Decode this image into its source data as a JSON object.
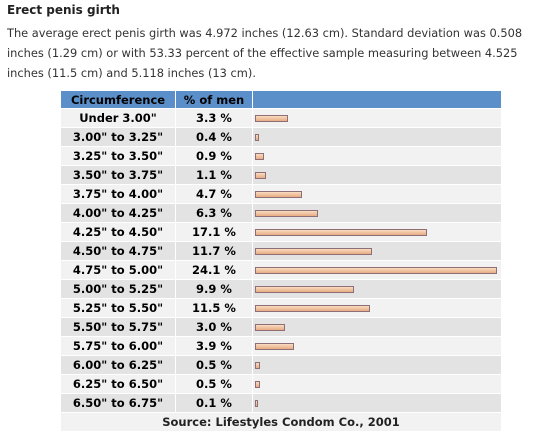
{
  "title": "Erect penis girth",
  "intro": "The average erect penis girth was 4.972 inches (12.63 cm). Standard deviation was 0.508 inches (1.29 cm) or with 53.33 percent of the effective sample measuring between 4.525 inches (11.5 cm) and 5.118 inches (13 cm).",
  "chart_data": {
    "type": "bar",
    "orientation": "horizontal",
    "columns": [
      "Circumference",
      "% of men"
    ],
    "categories": [
      "Under 3.00\"",
      "3.00\" to 3.25\"",
      "3.25\" to 3.50\"",
      "3.50\" to 3.75\"",
      "3.75\" to 4.00\"",
      "4.00\" to 4.25\"",
      "4.25\" to 4.50\"",
      "4.50\" to 4.75\"",
      "4.75\" to 5.00\"",
      "5.00\" to 5.25\"",
      "5.25\" to 5.50\"",
      "5.50\" to 5.75\"",
      "5.75\" to 6.00\"",
      "6.00\" to 6.25\"",
      "6.25\" to 6.50\"",
      "6.50\" to 6.75\""
    ],
    "labels": [
      "3.3 %",
      "0.4 %",
      "0.9 %",
      "1.1 %",
      "4.7 %",
      "6.3 %",
      "17.1 %",
      "11.7 %",
      "24.1 %",
      "9.9 %",
      "11.5 %",
      "3.0 %",
      "3.9 %",
      "0.5 %",
      "0.5 %",
      "0.1 %"
    ],
    "values": [
      3.3,
      0.4,
      0.9,
      1.1,
      4.7,
      6.3,
      17.1,
      11.7,
      24.1,
      9.9,
      11.5,
      3.0,
      3.9,
      0.5,
      0.5,
      0.1
    ],
    "xlim": [
      0,
      24.1
    ],
    "source": "Source: Lifestyles Condom Co., 2001",
    "colors": {
      "header": "#5b8fc9",
      "bar": "#f0c4a2",
      "bar_border": "#8e6f78"
    }
  }
}
